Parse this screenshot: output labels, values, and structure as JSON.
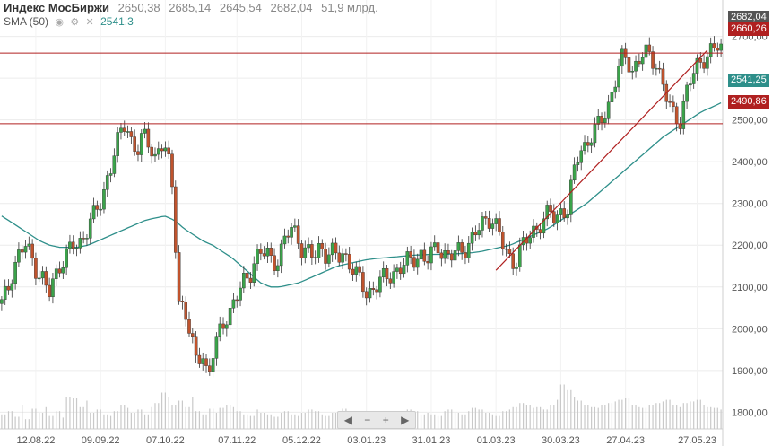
{
  "header": {
    "title": "Индекс МосБиржи",
    "open": "2650,38",
    "high": "2685,14",
    "low": "2645,54",
    "close": "2682,04",
    "volume": "51,9 млрд."
  },
  "sma": {
    "label": "SMA (50)",
    "value": "2541,3",
    "color": "#2e8f8a"
  },
  "badges": {
    "last": {
      "text": "2682,04",
      "color": "#555555"
    },
    "res_upper": {
      "text": "2660,26",
      "color": "#b02020"
    },
    "sma": {
      "text": "2541,25",
      "color": "#2e8f8a"
    },
    "res_lower": {
      "text": "2490,86",
      "color": "#b02020"
    }
  },
  "nav": {
    "prev": "◀",
    "minus": "−",
    "plus": "+",
    "next": "▶"
  },
  "chart_data": {
    "type": "candlestick",
    "ylim": [
      1760,
      2770
    ],
    "y_ticks": [
      "2700,00",
      "2600,00",
      "2500,00",
      "2400,00",
      "2300,00",
      "2200,00",
      "2100,00",
      "2000,00",
      "1900,00",
      "1800,00"
    ],
    "y_tick_values": [
      2700,
      2600,
      2500,
      2400,
      2300,
      2200,
      2100,
      2000,
      1900,
      1800
    ],
    "x_ticks": [
      "12.08.22",
      "09.09.22",
      "07.10.22",
      "07.11.22",
      "05.12.22",
      "03.01.23",
      "31.01.23",
      "01.03.23",
      "30.03.23",
      "27.04.23",
      "27.05.23"
    ],
    "x_tick_index": [
      10,
      29,
      48,
      69,
      88,
      107,
      126,
      145,
      164,
      183,
      204
    ],
    "horizontal_lines": [
      2660.26,
      2490.86
    ],
    "trendline": {
      "from": [
        145,
        2140
      ],
      "to": [
        207,
        2667
      ]
    },
    "up_color": "#3ba34a",
    "down_color": "#c0532d",
    "sma_color": "#2e8f8a",
    "line_color": "#b02020",
    "close": [
      2060,
      2090,
      2150,
      2180,
      2200,
      2170,
      2140,
      2120,
      2080,
      2120,
      2160,
      2180,
      2200,
      2190,
      2230,
      2260,
      2280,
      2300,
      2370,
      2420,
      2460,
      2490,
      2450,
      2430,
      2460,
      2440,
      2410,
      2450,
      2420,
      2330,
      2070,
      2050,
      1980,
      1920,
      1950,
      1880,
      1950,
      1990,
      2030,
      2050,
      2080,
      2110,
      2130,
      2170,
      2180,
      2180,
      2160,
      2170,
      2210,
      2240,
      2230,
      2190,
      2180,
      2170,
      2200,
      2180,
      2180,
      2170,
      2180,
      2160,
      2130,
      2110,
      2080,
      2100,
      2110,
      2120,
      2130,
      2140,
      2150,
      2160,
      2170,
      2180,
      2160,
      2180,
      2200,
      2180,
      2170,
      2180,
      2190,
      2200,
      2220,
      2240,
      2260,
      2270,
      2240,
      2200,
      2170,
      2160,
      2190,
      2210,
      2230,
      2250,
      2260,
      2280,
      2260,
      2290,
      2280,
      2370,
      2430,
      2440,
      2460,
      2480,
      2510,
      2540,
      2590,
      2640,
      2650,
      2620,
      2640,
      2660,
      2650,
      2640,
      2590,
      2540,
      2510,
      2500,
      2560,
      2600,
      2630,
      2650,
      2660,
      2670,
      2680
    ],
    "sma": [
      2270,
      2255,
      2240,
      2225,
      2210,
      2200,
      2195,
      2195,
      2195,
      2200,
      2210,
      2220,
      2230,
      2240,
      2250,
      2260,
      2265,
      2270,
      2260,
      2240,
      2225,
      2210,
      2200,
      2185,
      2170,
      2150,
      2130,
      2110,
      2100,
      2100,
      2105,
      2110,
      2120,
      2130,
      2140,
      2150,
      2155,
      2160,
      2165,
      2168,
      2170,
      2172,
      2174,
      2176,
      2177,
      2178,
      2178,
      2179,
      2180,
      2182,
      2185,
      2190,
      2195,
      2200,
      2210,
      2220,
      2230,
      2240,
      2255,
      2270,
      2285,
      2300,
      2320,
      2340,
      2360,
      2380,
      2400,
      2420,
      2440,
      2460,
      2475,
      2490,
      2505,
      2520,
      2530,
      2541
    ],
    "volume": [
      18,
      22,
      15,
      30,
      12,
      25,
      20,
      28,
      16,
      22,
      14,
      40,
      38,
      28,
      35,
      20,
      24,
      18,
      16,
      22,
      30,
      26,
      20,
      24,
      18,
      28,
      32,
      45,
      40,
      30,
      35,
      28,
      40,
      22,
      18,
      25,
      20,
      26,
      30,
      28,
      22,
      18,
      16,
      24,
      20,
      18,
      15,
      20,
      22,
      18,
      16,
      20,
      24,
      22,
      18,
      16,
      20,
      22,
      25,
      18,
      16,
      14,
      12,
      18,
      20,
      22,
      18,
      16,
      20,
      24,
      22,
      18,
      20,
      18,
      16,
      22,
      24,
      20,
      18,
      22,
      26,
      24,
      20,
      18,
      16,
      22,
      24,
      28,
      32,
      30,
      26,
      28,
      24,
      30,
      36,
      55,
      48,
      40,
      35,
      30,
      28,
      26,
      30,
      32,
      34,
      36,
      38,
      30,
      28,
      26,
      30,
      32,
      34,
      36,
      30,
      28,
      32,
      34,
      36,
      30,
      28,
      26,
      24
    ]
  }
}
